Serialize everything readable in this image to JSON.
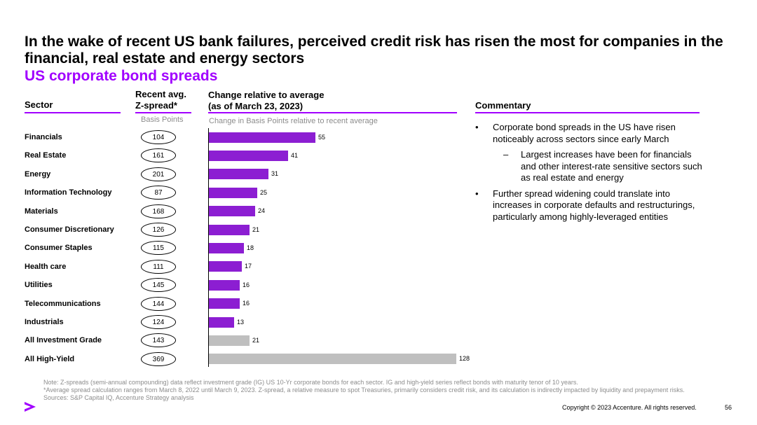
{
  "header": {
    "title": "In the wake of recent US bank failures, perceived credit risk has risen the most for companies in the financial, real estate and energy sectors",
    "subtitle": "US corporate bond spreads"
  },
  "columns": {
    "sector": "Sector",
    "zspread_line1": "Recent avg.",
    "zspread_line2": "Z-spread*",
    "zspread_unit": "Basis Points",
    "change_line1": "Change relative to  average",
    "change_line2": "(as of March 23, 2023)",
    "change_unit": "Change in Basis Points relative to recent average",
    "commentary": "Commentary"
  },
  "chart_data": {
    "type": "bar",
    "orientation": "horizontal",
    "categories": [
      "Financials",
      "Real Estate",
      "Energy",
      "Information Technology",
      "Materials",
      "Consumer Discretionary",
      "Consumer Staples",
      "Health care",
      "Utilities",
      "Telecommunications",
      "Industrials",
      "All Investment Grade",
      "All High-Yield"
    ],
    "z_spread": [
      "104",
      "161",
      "201",
      "87",
      "168",
      "126",
      "115",
      "111",
      "145",
      "144",
      "124",
      "143",
      "369"
    ],
    "values": [
      55,
      41,
      31,
      25,
      24,
      21,
      18,
      17,
      16,
      16,
      13,
      21,
      128
    ],
    "bar_colors": [
      "#8c1ed2",
      "#8c1ed2",
      "#8c1ed2",
      "#8c1ed2",
      "#8c1ed2",
      "#8c1ed2",
      "#8c1ed2",
      "#8c1ed2",
      "#8c1ed2",
      "#8c1ed2",
      "#8c1ed2",
      "#bfbfbf",
      "#bfbfbf"
    ],
    "xlim": [
      0,
      128
    ],
    "grid": false
  },
  "commentary": {
    "bullet1": "Corporate bond spreads in the US have risen noticeably across sectors since early March",
    "sub1": "Largest increases have been for financials and other interest-rate sensitive sectors such as real estate and energy",
    "bullet2": "Further spread widening could translate into increases in corporate defaults and restructurings, particularly among highly-leveraged entities",
    "bullet_mark": "•",
    "dash_mark": "–"
  },
  "footer": {
    "note1": "Note: Z-spreads (semi-annual compounding) data reflect investment grade (IG) US 10-Yr corporate bonds for each sector. IG and high-yield series reflect bonds with maturity tenor of 10 years.",
    "note2": "*Average spread calculation ranges from March 8, 2022 until March 9, 2023. Z-spread, a relative measure to spot Treasuries, primarily considers credit risk, and its calculation is indirectly impacted by liquidity and prepayment risks.",
    "sources": "Sources: S&P Capital IQ, Accenture Strategy analysis",
    "copyright": "Copyright © 2023 Accenture. All rights reserved.",
    "page_number": "56"
  },
  "colors": {
    "accent": "#a100ff",
    "bar": "#8c1ed2",
    "aggregate_bar": "#bfbfbf"
  },
  "logo_icon": "accenture-chevron-icon"
}
